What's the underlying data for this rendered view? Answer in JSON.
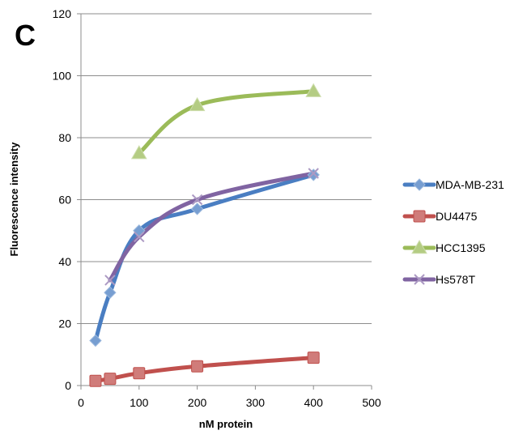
{
  "panel_label": "C",
  "chart_data": {
    "type": "line",
    "title": "",
    "xlabel": "nM protein",
    "ylabel": "Fluorescence intensity",
    "xlim": [
      0,
      500
    ],
    "ylim": [
      0,
      120
    ],
    "xticks": [
      0,
      100,
      200,
      300,
      400,
      500
    ],
    "yticks": [
      0,
      20,
      40,
      60,
      80,
      100,
      120
    ],
    "grid": "horizontal",
    "legend_position": "right",
    "smooth": true,
    "series": [
      {
        "name": "MDA-MB-231",
        "color": "#4a7ec2",
        "marker": "diamond",
        "x": [
          25,
          50,
          100,
          200,
          400
        ],
        "y": [
          14.5,
          30,
          50,
          57,
          68
        ]
      },
      {
        "name": "DU4475",
        "color": "#c0504d",
        "marker": "square",
        "x": [
          25,
          50,
          100,
          200,
          400
        ],
        "y": [
          1.5,
          2.2,
          4,
          6.2,
          9
        ]
      },
      {
        "name": "HCC1395",
        "color": "#9bbb59",
        "marker": "triangle",
        "x": [
          100,
          200,
          400
        ],
        "y": [
          75,
          90.5,
          95
        ]
      },
      {
        "name": "Hs578T",
        "color": "#8064a2",
        "marker": "x",
        "x": [
          50,
          100,
          200,
          400
        ],
        "y": [
          34,
          48,
          60,
          68.5
        ]
      }
    ]
  }
}
